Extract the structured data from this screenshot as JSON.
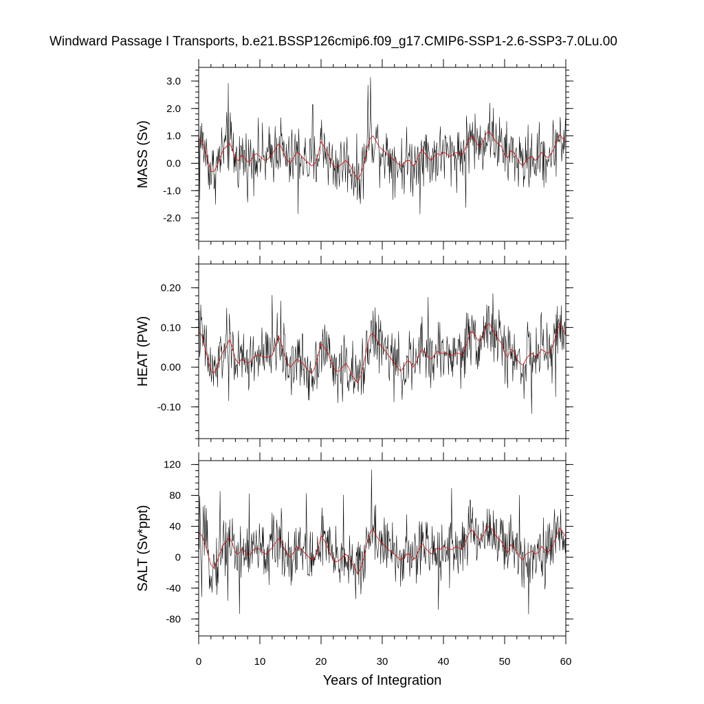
{
  "title": "Windward Passage I Transports, b.e21.BSSP126cmip6.f09_g17.CMIP6-SSP1-2.6-SSP3-7.0Lu.00",
  "xlabel": "Years of Integration",
  "colors": {
    "raw": "#000000",
    "smoothed": "#e00000",
    "background": "#ffffff"
  },
  "chart_data": [
    {
      "type": "line",
      "ylabel": "MASS (Sv)",
      "xlim": [
        0,
        60
      ],
      "ylim": [
        -2.85,
        3.5
      ],
      "xticks": [
        0,
        10,
        20,
        30,
        40,
        50,
        60
      ],
      "yticks": [
        -2.0,
        -1.0,
        0.0,
        1.0,
        2.0,
        3.0
      ],
      "ytick_labels": [
        "-2.0",
        "-1.0",
        "0.0",
        "1.0",
        "2.0",
        "3.0"
      ],
      "yminor_step": 0.2,
      "raw_range": [
        -2.8,
        3.5
      ],
      "series": [
        {
          "role": "monthly",
          "color": "#000000"
        },
        {
          "role": "smoothed",
          "color": "#e00000",
          "x": [
            0,
            0.5,
            1,
            1.5,
            2,
            2.5,
            3,
            3.5,
            4,
            4.5,
            5,
            5.5,
            6,
            6.5,
            7,
            7.5,
            8,
            8.5,
            9,
            9.5,
            10,
            10.5,
            11,
            11.5,
            12,
            12.5,
            13,
            13.5,
            14,
            14.5,
            15,
            15.5,
            16,
            16.5,
            17,
            17.5,
            18,
            18.5,
            19,
            19.5,
            20,
            20.5,
            21,
            21.5,
            22,
            22.5,
            23,
            23.5,
            24,
            24.5,
            25,
            25.5,
            26,
            26.5,
            27,
            27.5,
            28,
            28.5,
            29,
            29.5,
            30,
            30.5,
            31,
            31.5,
            32,
            32.5,
            33,
            33.5,
            34,
            34.5,
            35,
            35.5,
            36,
            36.5,
            37,
            37.5,
            38,
            38.5,
            39,
            39.5,
            40,
            40.5,
            41,
            41.5,
            42,
            42.5,
            43,
            43.5,
            44,
            44.5,
            45,
            45.5,
            46,
            46.5,
            47,
            47.5,
            48,
            48.5,
            49,
            49.5,
            50,
            50.5,
            51,
            51.5,
            52,
            52.5,
            53,
            53.5,
            54,
            54.5,
            55,
            55.5,
            56,
            56.5,
            57,
            57.5,
            58,
            58.5,
            59,
            59.5,
            60
          ],
          "values": [
            0.9,
            0.8,
            0.5,
            0.1,
            -0.3,
            -0.3,
            -0.1,
            0.2,
            0.5,
            0.6,
            0.75,
            0.5,
            0.15,
            0.1,
            0.3,
            0.2,
            0.05,
            0.1,
            0.3,
            0.35,
            0.25,
            0.15,
            0.1,
            0.2,
            0.35,
            0.5,
            0.7,
            0.6,
            0.3,
            0.1,
            0.0,
            0.2,
            0.4,
            0.35,
            0.2,
            0.1,
            0.0,
            -0.1,
            0.0,
            0.3,
            0.8,
            0.6,
            0.4,
            0.1,
            -0.1,
            -0.15,
            -0.1,
            0.0,
            0.1,
            0.0,
            -0.2,
            -0.4,
            -0.6,
            -0.4,
            0.0,
            0.5,
            0.9,
            1.0,
            0.8,
            0.6,
            0.5,
            0.4,
            0.3,
            0.2,
            0.1,
            0.0,
            -0.1,
            0.0,
            0.1,
            0.1,
            -0.1,
            0.0,
            0.3,
            0.5,
            0.35,
            0.2,
            0.1,
            0.25,
            0.35,
            0.3,
            0.4,
            0.35,
            0.25,
            0.3,
            0.4,
            0.35,
            0.3,
            0.5,
            0.8,
            1.0,
            0.9,
            0.7,
            0.6,
            0.8,
            1.1,
            1.15,
            1.0,
            0.8,
            0.7,
            0.6,
            0.3,
            0.2,
            0.45,
            0.4,
            0.2,
            0.0,
            -0.1,
            0.1,
            0.2,
            0.25,
            0.1,
            0.2,
            0.4,
            0.3,
            0.2,
            0.3,
            0.5,
            0.8,
            1.05,
            0.9,
            0.75
          ]
        }
      ]
    },
    {
      "type": "line",
      "ylabel": "HEAT (PW)",
      "xlim": [
        0,
        60
      ],
      "ylim": [
        -0.18,
        0.26
      ],
      "xticks": [
        0,
        10,
        20,
        30,
        40,
        50,
        60
      ],
      "yticks": [
        -0.1,
        0.0,
        0.1,
        0.2
      ],
      "ytick_labels": [
        "-0.10",
        "0.00",
        "0.10",
        "0.20"
      ],
      "yminor_step": 0.02,
      "raw_range": [
        -0.175,
        0.255
      ],
      "series": [
        {
          "role": "monthly",
          "color": "#000000"
        },
        {
          "role": "smoothed",
          "color": "#e00000",
          "x": [
            0,
            0.5,
            1,
            1.5,
            2,
            2.5,
            3,
            3.5,
            4,
            4.5,
            5,
            5.5,
            6,
            6.5,
            7,
            7.5,
            8,
            8.5,
            9,
            9.5,
            10,
            10.5,
            11,
            11.5,
            12,
            12.5,
            13,
            13.5,
            14,
            14.5,
            15,
            15.5,
            16,
            16.5,
            17,
            17.5,
            18,
            18.5,
            19,
            19.5,
            20,
            20.5,
            21,
            21.5,
            22,
            22.5,
            23,
            23.5,
            24,
            24.5,
            25,
            25.5,
            26,
            26.5,
            27,
            27.5,
            28,
            28.5,
            29,
            29.5,
            30,
            30.5,
            31,
            31.5,
            32,
            32.5,
            33,
            33.5,
            34,
            34.5,
            35,
            35.5,
            36,
            36.5,
            37,
            37.5,
            38,
            38.5,
            39,
            39.5,
            40,
            40.5,
            41,
            41.5,
            42,
            42.5,
            43,
            43.5,
            44,
            44.5,
            45,
            45.5,
            46,
            46.5,
            47,
            47.5,
            48,
            48.5,
            49,
            49.5,
            50,
            50.5,
            51,
            51.5,
            52,
            52.5,
            53,
            53.5,
            54,
            54.5,
            55,
            55.5,
            56,
            56.5,
            57,
            57.5,
            58,
            58.5,
            59,
            59.5,
            60
          ],
          "values": [
            0.09,
            0.08,
            0.05,
            0.02,
            -0.01,
            -0.015,
            0.0,
            0.02,
            0.04,
            0.05,
            0.07,
            0.05,
            0.02,
            0.01,
            0.02,
            0.015,
            0.01,
            0.015,
            0.025,
            0.03,
            0.03,
            0.025,
            0.025,
            0.025,
            0.03,
            0.05,
            0.08,
            0.06,
            0.03,
            0.01,
            0.0,
            0.01,
            0.02,
            0.015,
            0.01,
            0.0,
            -0.01,
            -0.015,
            0.0,
            0.03,
            0.06,
            0.05,
            0.04,
            0.02,
            0.0,
            -0.01,
            -0.01,
            0.0,
            0.01,
            0.0,
            -0.02,
            -0.03,
            -0.04,
            -0.02,
            0.01,
            0.05,
            0.08,
            0.085,
            0.07,
            0.06,
            0.05,
            0.04,
            0.03,
            0.02,
            0.01,
            0.0,
            -0.01,
            0.0,
            0.015,
            0.015,
            0.0,
            0.01,
            0.03,
            0.045,
            0.035,
            0.025,
            0.02,
            0.03,
            0.04,
            0.035,
            0.035,
            0.035,
            0.03,
            0.03,
            0.035,
            0.035,
            0.03,
            0.045,
            0.07,
            0.09,
            0.085,
            0.07,
            0.065,
            0.08,
            0.105,
            0.11,
            0.095,
            0.08,
            0.07,
            0.06,
            0.035,
            0.025,
            0.045,
            0.04,
            0.02,
            0.01,
            0.005,
            0.02,
            0.03,
            0.035,
            0.025,
            0.03,
            0.045,
            0.04,
            0.035,
            0.04,
            0.06,
            0.085,
            0.11,
            0.095,
            0.08
          ]
        }
      ]
    },
    {
      "type": "line",
      "ylabel": "SALT (Sv*ppt)",
      "xlim": [
        0,
        60
      ],
      "ylim": [
        -102,
        125
      ],
      "xticks": [
        0,
        10,
        20,
        30,
        40,
        50,
        60
      ],
      "xtick_labels": [
        "0",
        "10",
        "20",
        "30",
        "40",
        "50",
        "60"
      ],
      "yticks": [
        -80,
        -40,
        0,
        40,
        80,
        120
      ],
      "ytick_labels": [
        "-80",
        "-40",
        "0",
        "40",
        "80",
        "120"
      ],
      "yminor_step": 8,
      "raw_range": [
        -101,
        124
      ],
      "series": [
        {
          "role": "monthly",
          "color": "#000000"
        },
        {
          "role": "smoothed",
          "color": "#e00000",
          "x": [
            0,
            0.5,
            1,
            1.5,
            2,
            2.5,
            3,
            3.5,
            4,
            4.5,
            5,
            5.5,
            6,
            6.5,
            7,
            7.5,
            8,
            8.5,
            9,
            9.5,
            10,
            10.5,
            11,
            11.5,
            12,
            12.5,
            13,
            13.5,
            14,
            14.5,
            15,
            15.5,
            16,
            16.5,
            17,
            17.5,
            18,
            18.5,
            19,
            19.5,
            20,
            20.5,
            21,
            21.5,
            22,
            22.5,
            23,
            23.5,
            24,
            24.5,
            25,
            25.5,
            26,
            26.5,
            27,
            27.5,
            28,
            28.5,
            29,
            29.5,
            30,
            30.5,
            31,
            31.5,
            32,
            32.5,
            33,
            33.5,
            34,
            34.5,
            35,
            35.5,
            36,
            36.5,
            37,
            37.5,
            38,
            38.5,
            39,
            39.5,
            40,
            40.5,
            41,
            41.5,
            42,
            42.5,
            43,
            43.5,
            44,
            44.5,
            45,
            45.5,
            46,
            46.5,
            47,
            47.5,
            48,
            48.5,
            49,
            49.5,
            50,
            50.5,
            51,
            51.5,
            52,
            52.5,
            53,
            53.5,
            54,
            54.5,
            55,
            55.5,
            56,
            56.5,
            57,
            57.5,
            58,
            58.5,
            59,
            59.5,
            60
          ],
          "values": [
            32,
            28,
            18,
            4,
            -10,
            -14,
            -6,
            6,
            16,
            20,
            26,
            18,
            6,
            4,
            10,
            8,
            2,
            4,
            10,
            12,
            10,
            6,
            4,
            8,
            12,
            18,
            24,
            20,
            10,
            4,
            0,
            6,
            14,
            12,
            8,
            4,
            0,
            -4,
            0,
            10,
            28,
            22,
            14,
            4,
            -4,
            -6,
            -4,
            0,
            4,
            0,
            -8,
            -14,
            -22,
            -14,
            0,
            18,
            32,
            36,
            28,
            22,
            18,
            14,
            10,
            6,
            4,
            0,
            -4,
            0,
            4,
            4,
            -4,
            0,
            10,
            18,
            12,
            8,
            4,
            8,
            12,
            10,
            14,
            12,
            10,
            10,
            14,
            12,
            10,
            18,
            28,
            36,
            32,
            26,
            22,
            28,
            38,
            40,
            36,
            28,
            24,
            20,
            10,
            6,
            16,
            14,
            6,
            0,
            -4,
            4,
            6,
            8,
            4,
            6,
            14,
            10,
            6,
            10,
            18,
            28,
            38,
            32,
            26
          ]
        }
      ]
    }
  ]
}
